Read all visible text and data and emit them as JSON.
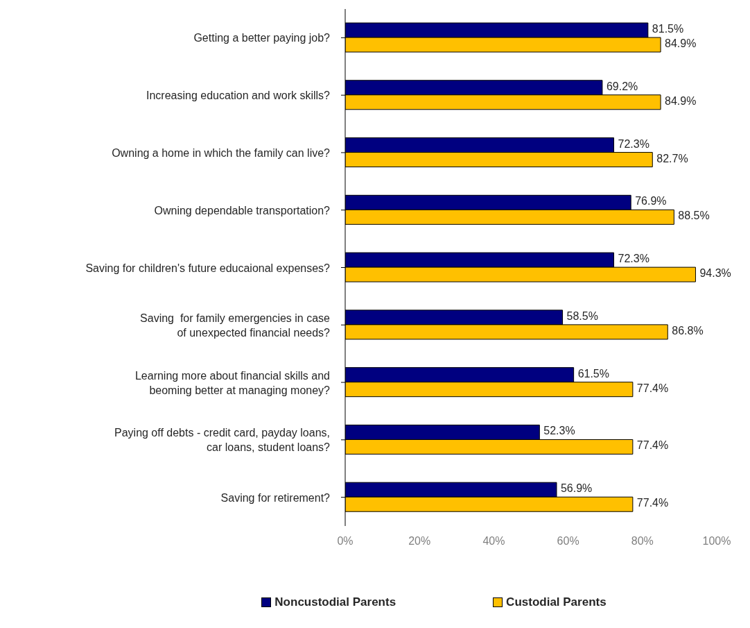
{
  "chart_data": {
    "type": "bar",
    "orientation": "horizontal",
    "categories": [
      "Getting a better paying job?",
      "Increasing education and work skills?",
      "Owning a home in which the family can live?",
      "Owning dependable transportation?",
      "Saving for children's future educaional expenses?",
      "Saving  for family emergencies in case\nof unexpected financial needs?",
      "Learning more about financial skills and\nbeoming better at managing money?",
      "Paying off debts - credit card, payday loans,\ncar loans, student loans?",
      "Saving for retirement?"
    ],
    "series": [
      {
        "name": "Noncustodial Parents",
        "color": "#000080",
        "values": [
          81.5,
          69.2,
          72.3,
          76.9,
          72.3,
          58.5,
          61.5,
          52.3,
          56.9
        ],
        "value_labels": [
          "81.5%",
          "69.2%",
          "72.3%",
          "76.9%",
          "72.3%",
          "58.5%",
          "61.5%",
          "52.3%",
          "56.9%"
        ]
      },
      {
        "name": "Custodial Parents",
        "color": "#ffc000",
        "values": [
          84.9,
          84.9,
          82.7,
          88.5,
          94.3,
          86.8,
          77.4,
          77.4,
          77.4
        ],
        "value_labels": [
          "84.9%",
          "84.9%",
          "82.7%",
          "88.5%",
          "94.3%",
          "86.8%",
          "77.4%",
          "77.4%",
          "77.4%"
        ]
      }
    ],
    "xlim": [
      0,
      100
    ],
    "xticks": [
      {
        "value": 0,
        "label": "0%"
      },
      {
        "value": 20,
        "label": "20%"
      },
      {
        "value": 40,
        "label": "40%"
      },
      {
        "value": 60,
        "label": "60%"
      },
      {
        "value": 80,
        "label": "80%"
      },
      {
        "value": 100,
        "label": "100%"
      }
    ],
    "grid": false,
    "legend": "bottom"
  }
}
